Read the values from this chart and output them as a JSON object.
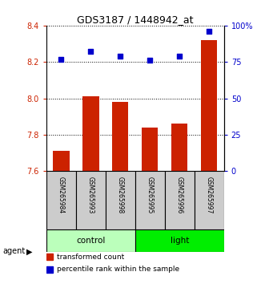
{
  "title": "GDS3187 / 1448942_at",
  "samples": [
    "GSM265984",
    "GSM265993",
    "GSM265998",
    "GSM265995",
    "GSM265996",
    "GSM265997"
  ],
  "bar_values": [
    7.71,
    8.01,
    7.98,
    7.84,
    7.86,
    8.32
  ],
  "bar_base": 7.6,
  "dot_values": [
    77,
    82,
    79,
    76,
    79,
    96
  ],
  "left_ylim": [
    7.6,
    8.4
  ],
  "right_ylim": [
    0,
    100
  ],
  "left_yticks": [
    7.6,
    7.8,
    8.0,
    8.2,
    8.4
  ],
  "right_yticks": [
    0,
    25,
    50,
    75,
    100
  ],
  "right_yticklabels": [
    "0",
    "25",
    "50",
    "75",
    "100%"
  ],
  "bar_color": "#cc2200",
  "dot_color": "#0000cc",
  "groups": [
    {
      "label": "control",
      "start": 0,
      "end": 3,
      "color": "#bbffbb"
    },
    {
      "label": "light",
      "start": 3,
      "end": 6,
      "color": "#00ee00"
    }
  ],
  "left_tick_color": "#cc2200",
  "right_tick_color": "#0000cc",
  "agent_label": "agent",
  "legend_items": [
    {
      "label": "transformed count",
      "color": "#cc2200"
    },
    {
      "label": "percentile rank within the sample",
      "color": "#0000cc"
    }
  ],
  "bar_width": 0.55,
  "background_color": "#ffffff",
  "sample_box_color": "#cccccc",
  "sample_box_edge": "#000000"
}
